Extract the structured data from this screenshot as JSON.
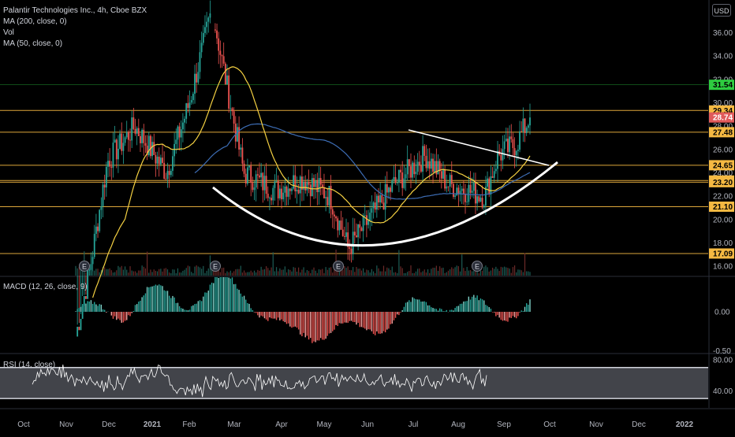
{
  "header": {
    "symbol_line": "Palantir Technologies Inc., 4h, Cboe BZX",
    "ma200_label": "MA (200, close, 0)",
    "vol_label": "Vol",
    "ma50_label": "MA (50, close, 0)",
    "currency_button": "USD"
  },
  "colors": {
    "background": "#000000",
    "up": "#26a69a",
    "down": "#ef5350",
    "ma50": "#f5d142",
    "ma200": "#3d6db5",
    "level_line": "#f5b942",
    "green_level": "#2ecc40",
    "last_price": "#e05a5a",
    "rsi_band": "#787b86"
  },
  "price_axis": {
    "ticks": [
      "36.00",
      "34.00",
      "32.00",
      "30.00",
      "28.00",
      "26.00",
      "24.00",
      "22.00",
      "20.00",
      "18.00",
      "16.00"
    ],
    "tick_values": [
      36,
      34,
      32,
      30,
      28,
      26,
      24,
      22,
      20,
      18,
      16
    ],
    "range": [
      15.2,
      38.8
    ]
  },
  "price_badges": [
    {
      "label": "31.54",
      "value": 31.54,
      "kind": "green"
    },
    {
      "label": "29.34",
      "value": 29.34,
      "kind": "level"
    },
    {
      "label": "28.74",
      "value": 28.74,
      "kind": "last"
    },
    {
      "label": "27.48",
      "value": 27.48,
      "kind": "level"
    },
    {
      "label": "24.65",
      "value": 24.65,
      "kind": "level"
    },
    {
      "label": "23.34",
      "value": 23.34,
      "kind": "level"
    },
    {
      "label": "23.20",
      "value": 23.2,
      "kind": "level"
    },
    {
      "label": "21.10",
      "value": 21.1,
      "kind": "level"
    },
    {
      "label": "17.09",
      "value": 17.09,
      "kind": "level"
    }
  ],
  "x_axis": {
    "labels": [
      "Oct",
      "Nov",
      "Dec",
      "2021",
      "Feb",
      "Mar",
      "Apr",
      "May",
      "Jun",
      "Jul",
      "Aug",
      "Sep",
      "Oct",
      "Nov",
      "Dec",
      "2022"
    ]
  },
  "earnings_markers": [
    "E",
    "E",
    "E",
    "E"
  ],
  "macd": {
    "label": "MACD (12, 26, close, 9)",
    "ticks": [
      "0.00",
      "-0.50"
    ],
    "tick_values": [
      0,
      -0.5
    ]
  },
  "rsi": {
    "label": "RSI (14, close)",
    "ticks": [
      "80.00",
      "40.00"
    ],
    "tick_values": [
      80,
      40
    ],
    "band": [
      30,
      70
    ]
  },
  "chart_data": {
    "type": "candlestick",
    "symbol": "PLTR",
    "interval": "4h",
    "price_range": [
      15.2,
      38.8
    ],
    "horizontal_levels": [
      31.54,
      29.34,
      27.48,
      24.65,
      23.34,
      23.2,
      21.1,
      17.09
    ],
    "last_price": 28.74,
    "close_path": [
      {
        "month": "Oct 2020",
        "close": 10.0
      },
      {
        "month": "Nov 2020",
        "close": 15.5
      },
      {
        "month": "mid Nov 2020",
        "close": 25.0
      },
      {
        "month": "Dec 2020",
        "close": 28.0
      },
      {
        "month": "late Dec 2020",
        "close": 24.0
      },
      {
        "month": "Jan 2021",
        "close": 30.0
      },
      {
        "month": "late Jan 2021",
        "close": 38.0
      },
      {
        "month": "Feb 2021",
        "close": 30.0
      },
      {
        "month": "late Feb 2021",
        "close": 24.0
      },
      {
        "month": "Mar 2021",
        "close": 22.5
      },
      {
        "month": "Apr 2021",
        "close": 23.5
      },
      {
        "month": "early May 2021",
        "close": 22.0
      },
      {
        "month": "mid May 2021",
        "close": 17.5
      },
      {
        "month": "Jun 2021",
        "close": 23.0
      },
      {
        "month": "late Jun 2021",
        "close": 25.5
      },
      {
        "month": "Jul 2021",
        "close": 23.0
      },
      {
        "month": "Aug 2021",
        "close": 22.0
      },
      {
        "month": "mid Aug 2021",
        "close": 25.5
      },
      {
        "month": "Sep 2021",
        "close": 26.5
      },
      {
        "month": "mid Sep 2021",
        "close": 28.74
      }
    ]
  }
}
